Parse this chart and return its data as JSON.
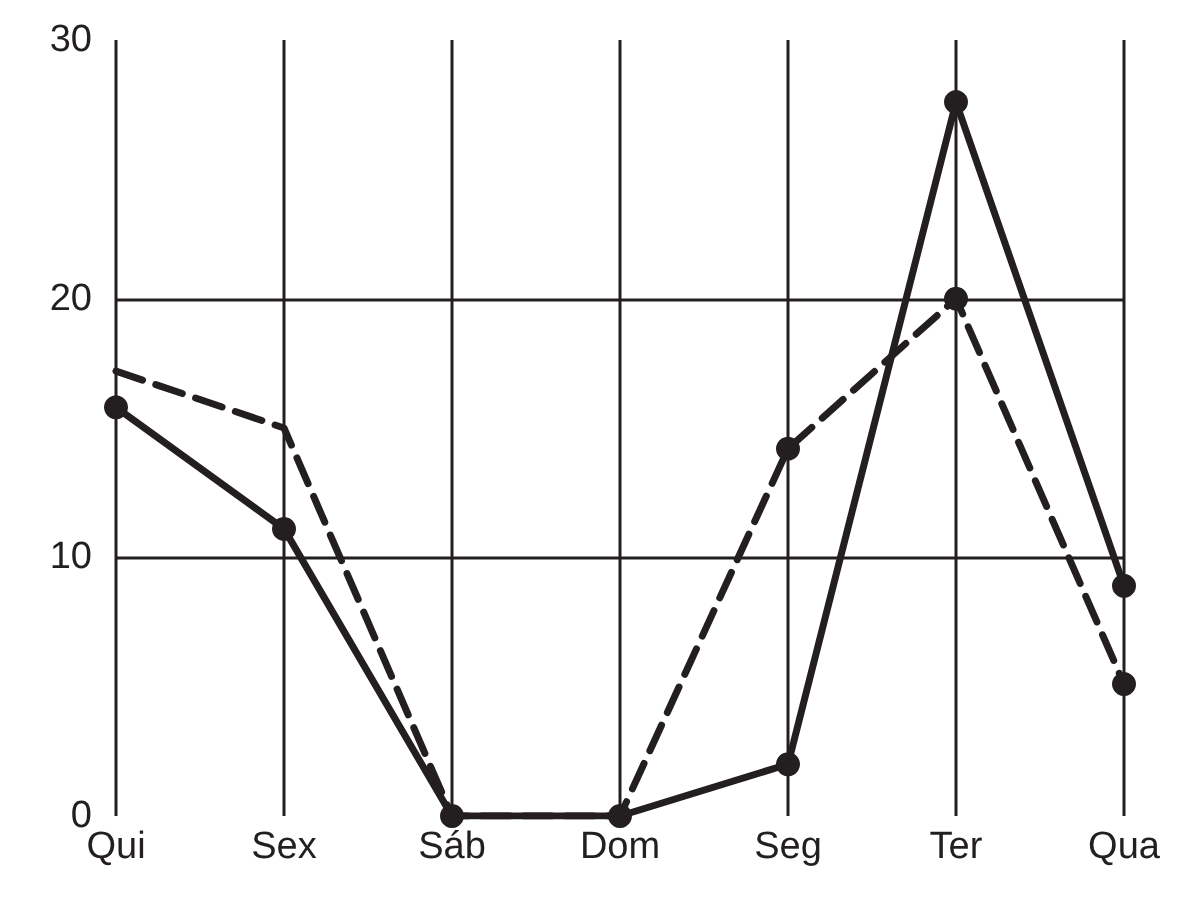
{
  "chart_data": {
    "type": "line",
    "categories": [
      "Qui",
      "Sex",
      "Sáb",
      "Dom",
      "Seg",
      "Ter",
      "Qua"
    ],
    "series": [
      {
        "color": "#231f20",
        "marker": "circle",
        "line_style": "solid",
        "values": [
          15.8,
          11.1,
          0,
          0,
          2,
          27.6,
          8.9
        ]
      },
      {
        "color": "#231f20",
        "marker": "none",
        "line_style": "dashed",
        "values": [
          17.2,
          15,
          0,
          0,
          14.2,
          20,
          5.1
        ]
      },
      {
        "type": "scatter",
        "color": "#231f20",
        "marker": "circle",
        "values": [
          null,
          null,
          null,
          null,
          14.2,
          20,
          5.1
        ]
      }
    ],
    "ylim": [
      0,
      30
    ],
    "yticks": [
      0,
      10,
      20,
      30
    ],
    "grid": true
  }
}
